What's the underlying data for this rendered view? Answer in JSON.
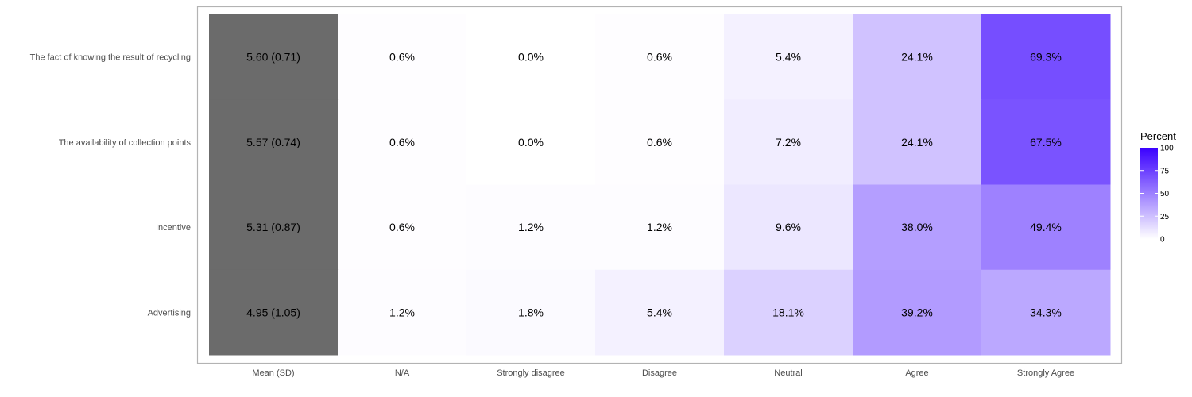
{
  "chart_data": {
    "type": "heatmap",
    "columns": [
      "Mean (SD)",
      "N/A",
      "Strongly disagree",
      "Disagree",
      "Neutral",
      "Agree",
      "Strongly Agree"
    ],
    "rows": [
      "The fact of knowing the result of recycling",
      "The availability of collection points",
      "Incentive",
      "Advertising"
    ],
    "mean_sd": [
      "5.60 (0.71)",
      "5.57 (0.74)",
      "5.31 (0.87)",
      "4.95 (1.05)"
    ],
    "percent_values": [
      [
        0.6,
        0.0,
        0.6,
        5.4,
        24.1,
        69.3
      ],
      [
        0.6,
        0.0,
        0.6,
        7.2,
        24.1,
        67.5
      ],
      [
        0.6,
        1.2,
        1.2,
        9.6,
        38.0,
        49.4
      ],
      [
        1.2,
        1.8,
        5.4,
        18.1,
        39.2,
        34.3
      ]
    ],
    "cell_labels": [
      [
        "0.6%",
        "0.0%",
        "0.6%",
        "5.4%",
        "24.1%",
        "69.3%"
      ],
      [
        "0.6%",
        "0.0%",
        "0.6%",
        "7.2%",
        "24.1%",
        "67.5%"
      ],
      [
        "0.6%",
        "1.2%",
        "1.2%",
        "9.6%",
        "38.0%",
        "49.4%"
      ],
      [
        "1.2%",
        "1.8%",
        "5.4%",
        "18.1%",
        "39.2%",
        "34.3%"
      ]
    ],
    "legend": {
      "title": "Percent",
      "ticks": [
        0,
        25,
        50,
        75,
        100
      ],
      "range": [
        0,
        100
      ],
      "low_color": "#ffffff",
      "high_color": "#3a00ff",
      "placement": "right"
    },
    "mean_column_color": "#6b6b6b",
    "panel_border_color": "#b3b3b3"
  }
}
